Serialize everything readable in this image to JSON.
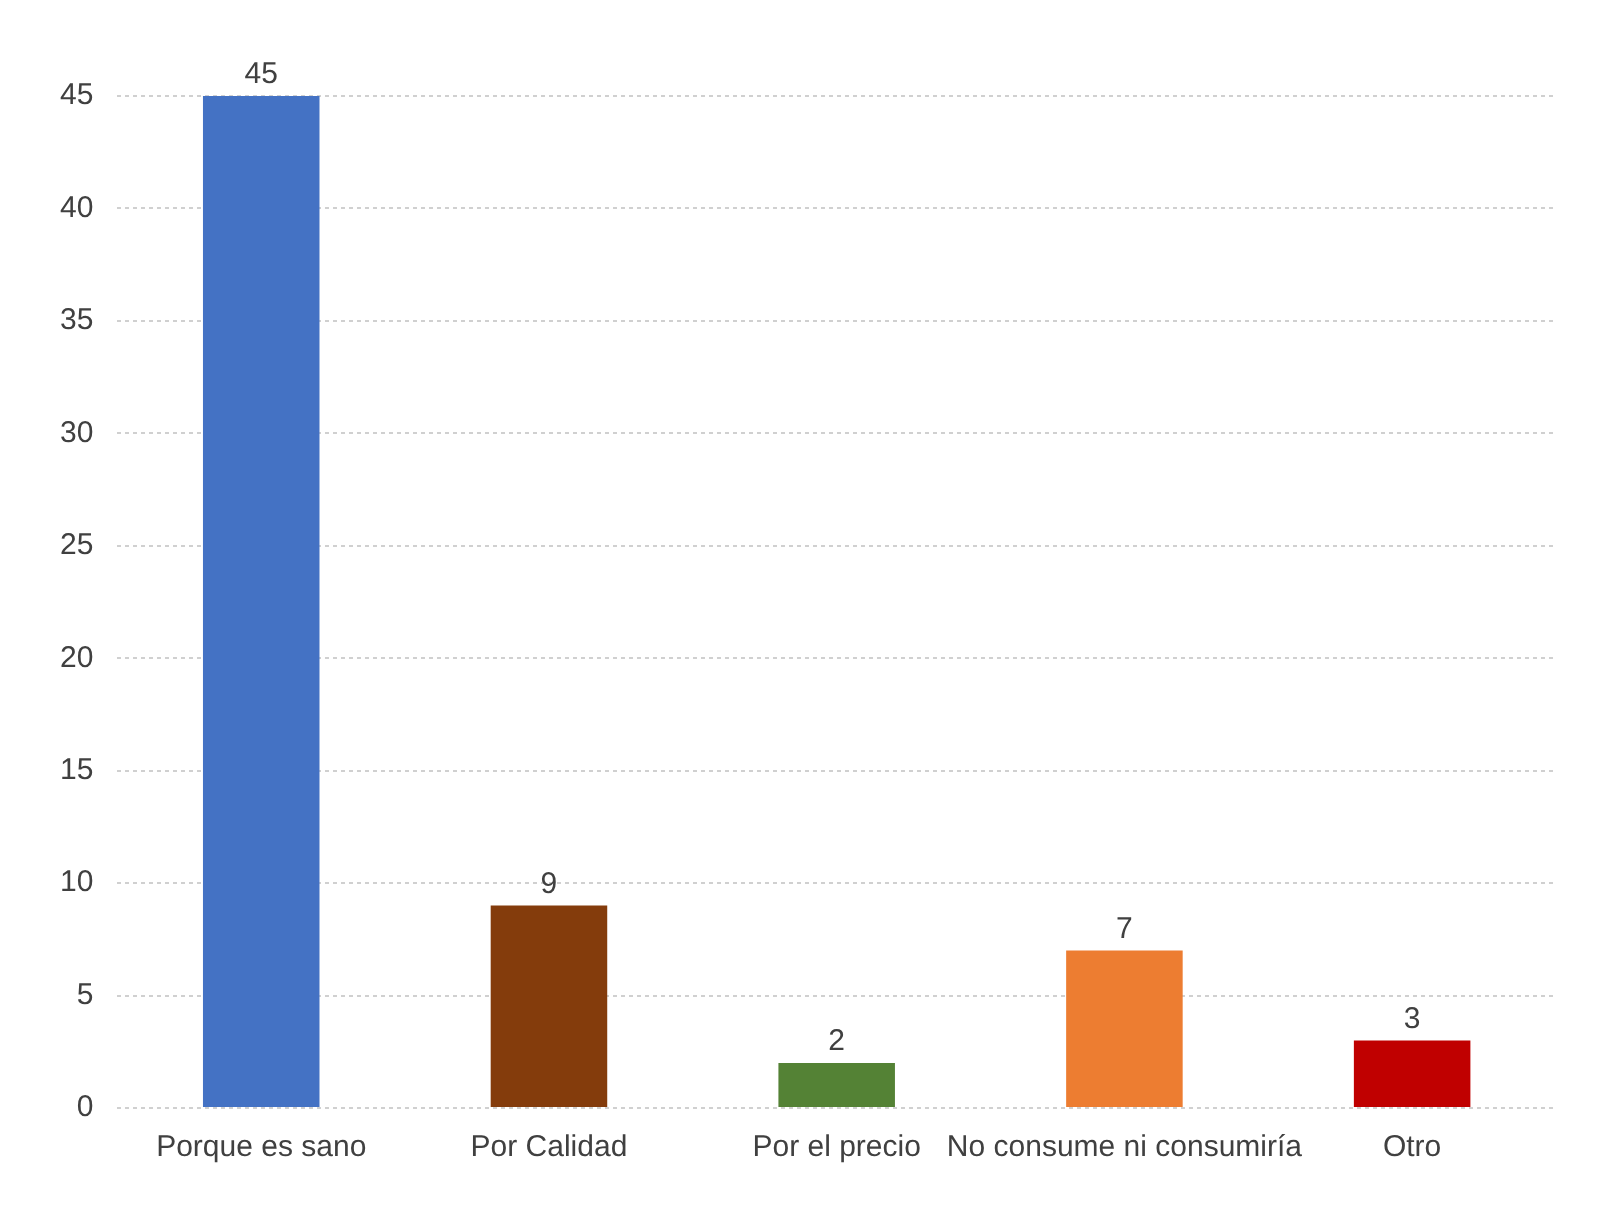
{
  "chart_data": {
    "type": "bar",
    "categories": [
      "Porque es sano",
      "Por Calidad",
      "Por el precio",
      "No consume ni consumiría",
      "Otro"
    ],
    "values": [
      45,
      9,
      2,
      7,
      3
    ],
    "colors": [
      "#4472c4",
      "#843c0c",
      "#548235",
      "#ed7d31",
      "#c00000"
    ],
    "ylim": [
      0,
      45
    ],
    "yticks": [
      0,
      5,
      10,
      15,
      20,
      25,
      30,
      35,
      40,
      45
    ],
    "grid": "y",
    "data_labels": true,
    "legend": false
  }
}
